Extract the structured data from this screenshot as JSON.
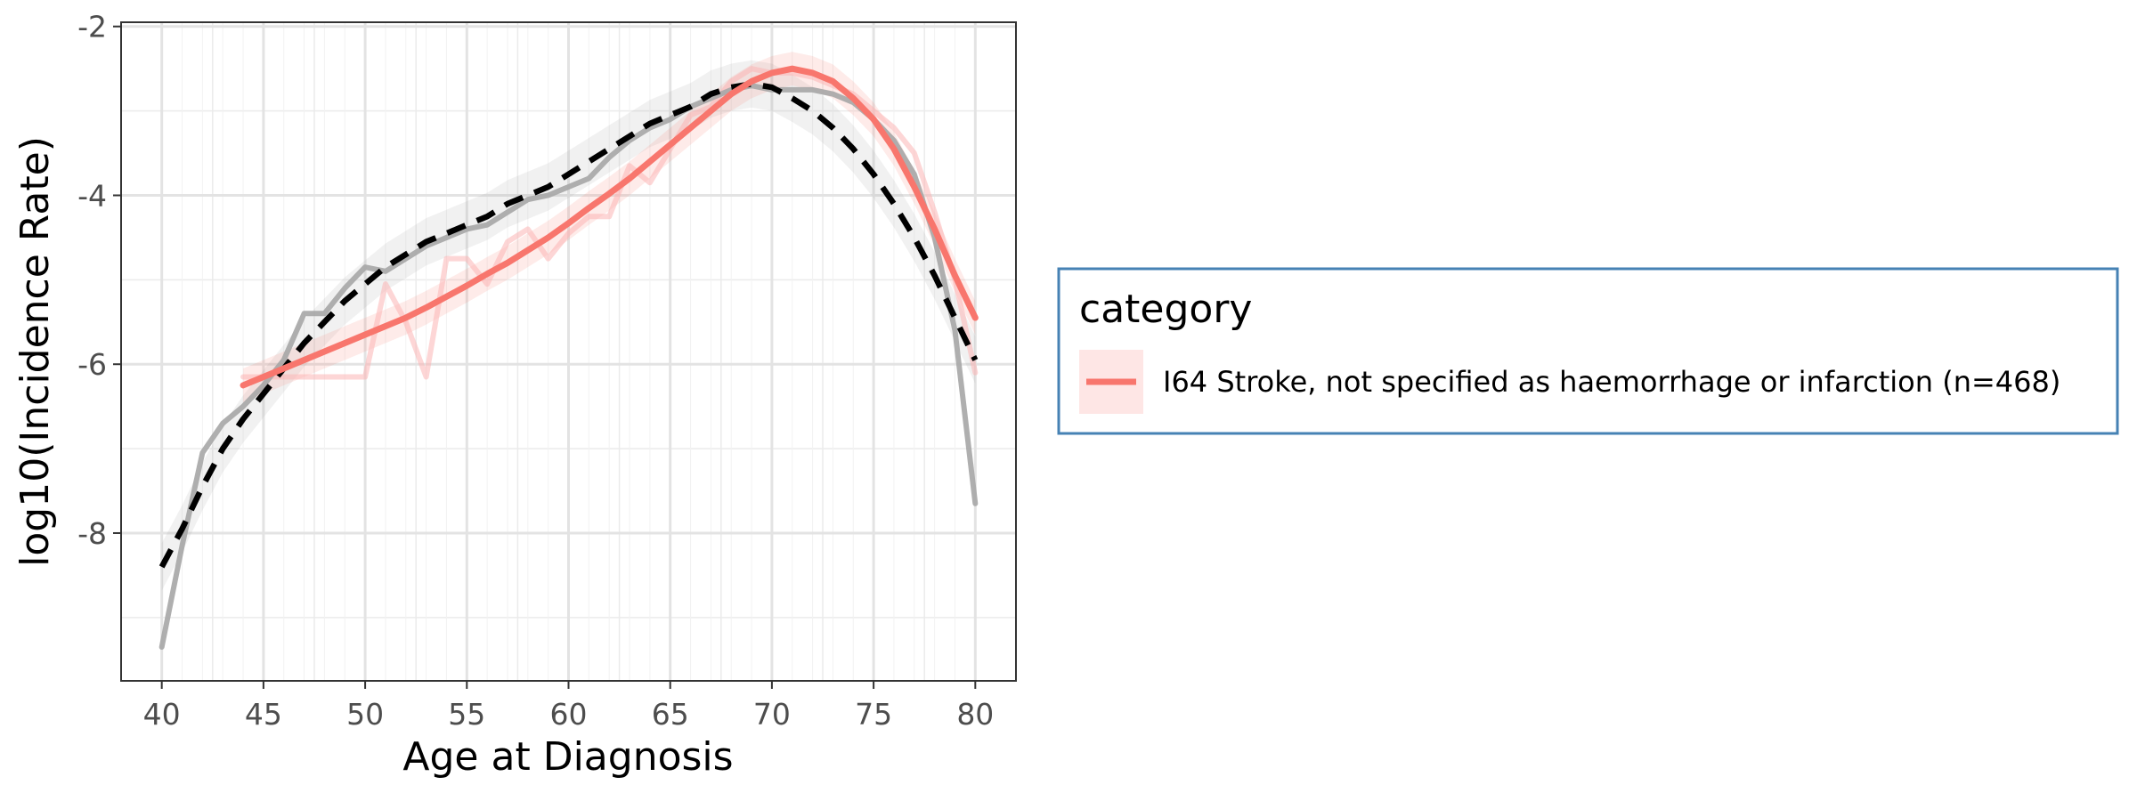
{
  "chart_data": {
    "type": "line",
    "xlabel": "Age at Diagnosis",
    "ylabel": "log10(Incidence Rate)",
    "xlim": [
      38,
      82
    ],
    "ylim": [
      -9.75,
      -1.95
    ],
    "x_ticks": [
      40,
      45,
      50,
      55,
      60,
      65,
      70,
      75,
      80
    ],
    "y_ticks": [
      -8,
      -6,
      -4,
      -2
    ],
    "grid": true,
    "legend": {
      "title": "category",
      "position": "right",
      "entries": [
        "I64 Stroke, not specified as haemorrhage or infarction (n=468)"
      ]
    },
    "series": [
      {
        "name": "I64 Stroke, not specified as haemorrhage or infarction (n=468)",
        "role": "observed",
        "color": "#fbb4b4",
        "x": [
          44,
          45,
          46,
          47,
          48,
          49,
          50,
          51,
          52,
          53,
          54,
          55,
          56,
          57,
          58,
          59,
          60,
          61,
          62,
          63,
          64,
          65,
          66,
          67,
          68,
          69,
          70,
          71,
          72,
          73,
          74,
          75,
          76,
          77,
          78,
          79,
          80
        ],
        "y": [
          -6.15,
          -6.15,
          -6.15,
          -6.15,
          -6.15,
          -6.15,
          -6.15,
          -5.05,
          -5.5,
          -6.15,
          -4.75,
          -4.75,
          -5.05,
          -4.55,
          -4.4,
          -4.75,
          -4.45,
          -4.25,
          -4.25,
          -3.65,
          -3.85,
          -3.45,
          -3.05,
          -2.95,
          -2.65,
          -2.5,
          -2.55,
          -2.55,
          -2.6,
          -2.7,
          -2.8,
          -3.0,
          -3.2,
          -3.5,
          -4.2,
          -5.0,
          -6.1
        ]
      },
      {
        "name": "",
        "role": "reference-observed",
        "color": "#a6a6a6",
        "x": [
          40,
          41,
          42,
          43,
          44,
          45,
          46,
          47,
          48,
          49,
          50,
          51,
          52,
          53,
          54,
          55,
          56,
          57,
          58,
          59,
          60,
          61,
          62,
          63,
          64,
          65,
          66,
          67,
          68,
          69,
          70,
          71,
          72,
          73,
          74,
          75,
          76,
          77,
          78,
          79,
          80
        ],
        "y": [
          -9.35,
          -8.15,
          -7.05,
          -6.7,
          -6.5,
          -6.25,
          -5.95,
          -5.4,
          -5.4,
          -5.1,
          -4.85,
          -4.9,
          -4.75,
          -4.6,
          -4.5,
          -4.4,
          -4.35,
          -4.2,
          -4.05,
          -4.0,
          -3.9,
          -3.8,
          -3.55,
          -3.35,
          -3.2,
          -3.1,
          -2.95,
          -2.85,
          -2.75,
          -2.7,
          -2.75,
          -2.75,
          -2.75,
          -2.8,
          -2.9,
          -3.1,
          -3.35,
          -3.75,
          -4.5,
          -5.6,
          -7.65
        ]
      },
      {
        "name": "",
        "role": "reference-fit",
        "color": "#000000",
        "x": [
          40,
          41,
          42,
          43,
          44,
          45,
          46,
          47,
          48,
          49,
          50,
          51,
          52,
          53,
          54,
          55,
          56,
          57,
          58,
          59,
          60,
          61,
          62,
          63,
          64,
          65,
          66,
          67,
          68,
          69,
          70,
          71,
          72,
          73,
          74,
          75,
          76,
          77,
          78,
          79,
          80
        ],
        "y": [
          -8.4,
          -7.95,
          -7.45,
          -7.0,
          -6.65,
          -6.35,
          -6.05,
          -5.75,
          -5.5,
          -5.25,
          -5.05,
          -4.85,
          -4.7,
          -4.55,
          -4.45,
          -4.35,
          -4.25,
          -4.1,
          -4.0,
          -3.9,
          -3.75,
          -3.6,
          -3.45,
          -3.3,
          -3.15,
          -3.05,
          -2.95,
          -2.8,
          -2.72,
          -2.68,
          -2.72,
          -2.85,
          -3.0,
          -3.2,
          -3.45,
          -3.75,
          -4.1,
          -4.5,
          -4.95,
          -5.45,
          -5.95
        ]
      },
      {
        "name": "I64 Stroke, not specified as haemorrhage or infarction (n=468)",
        "role": "fit",
        "color": "#f8766d",
        "x": [
          44,
          45,
          46,
          47,
          48,
          49,
          50,
          51,
          52,
          53,
          54,
          55,
          56,
          57,
          58,
          59,
          60,
          61,
          62,
          63,
          64,
          65,
          66,
          67,
          68,
          69,
          70,
          71,
          72,
          73,
          74,
          75,
          76,
          77,
          78,
          79,
          80
        ],
        "y": [
          -6.25,
          -6.15,
          -6.05,
          -5.95,
          -5.85,
          -5.75,
          -5.65,
          -5.55,
          -5.45,
          -5.33,
          -5.2,
          -5.07,
          -4.93,
          -4.8,
          -4.65,
          -4.5,
          -4.33,
          -4.15,
          -3.98,
          -3.8,
          -3.6,
          -3.4,
          -3.2,
          -3.0,
          -2.8,
          -2.65,
          -2.55,
          -2.5,
          -2.55,
          -2.65,
          -2.85,
          -3.1,
          -3.45,
          -3.9,
          -4.4,
          -4.95,
          -5.45
        ]
      }
    ]
  }
}
